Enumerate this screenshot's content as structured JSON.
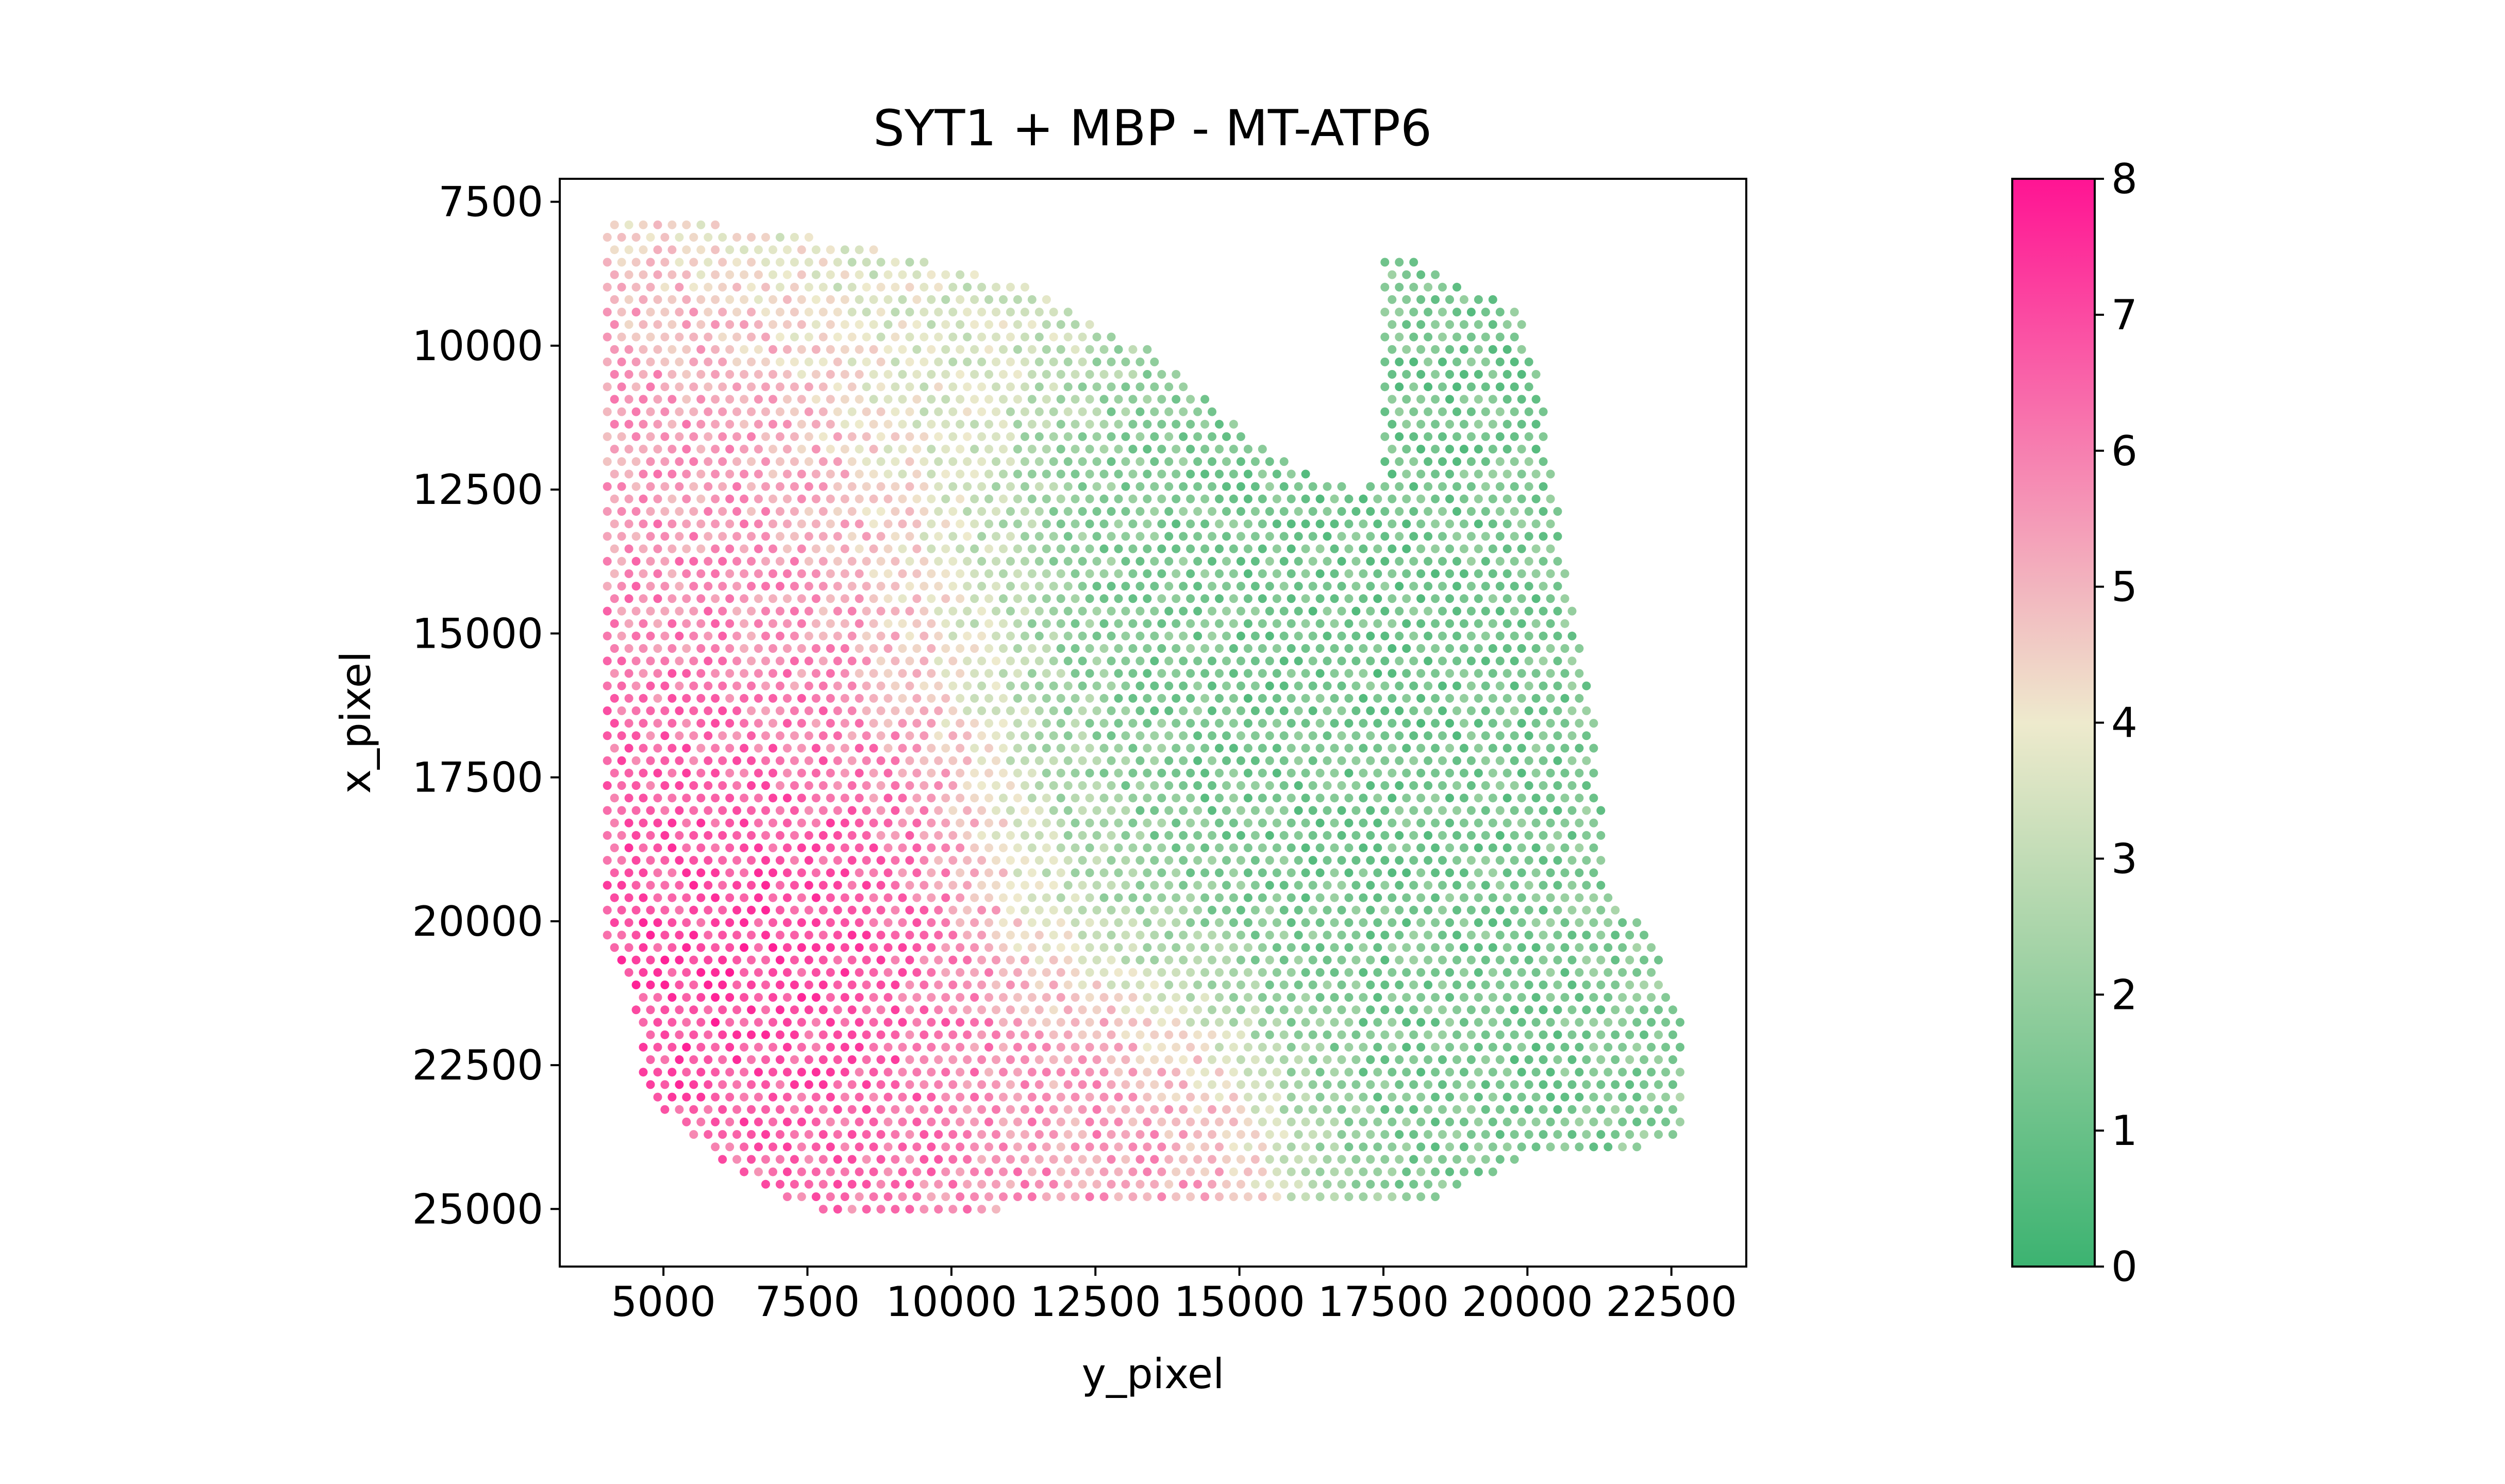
{
  "chart_data": {
    "type": "scatter",
    "title": "SYT1 + MBP - MT-ATP6",
    "xlabel": "y_pixel",
    "ylabel": "x_pixel",
    "xlim": [
      3200,
      23800
    ],
    "ylim": [
      26000,
      7100
    ],
    "y_inverted": true,
    "x_ticks": [
      "5000",
      "7500",
      "10000",
      "12500",
      "15000",
      "17500",
      "20000",
      "22500"
    ],
    "x_tick_values": [
      5000,
      7500,
      10000,
      12500,
      15000,
      17500,
      20000,
      22500
    ],
    "y_ticks": [
      "7500",
      "10000",
      "12500",
      "15000",
      "17500",
      "20000",
      "22500",
      "25000"
    ],
    "y_tick_values": [
      7500,
      10000,
      12500,
      15000,
      17500,
      20000,
      22500,
      25000
    ],
    "grid": false,
    "spot_spacing": 250,
    "colorbar": {
      "min": 0,
      "max": 8,
      "ticks": [
        "0",
        "1",
        "2",
        "3",
        "4",
        "5",
        "6",
        "7",
        "8"
      ],
      "tick_values": [
        0,
        1,
        2,
        3,
        4,
        5,
        6,
        7,
        8
      ],
      "colors": [
        "#3cb371",
        "#eeeacd",
        "#ff1493"
      ]
    },
    "tissue_outline": [
      [
        4000,
        7900
      ],
      [
        6000,
        7900
      ],
      [
        8300,
        8200
      ],
      [
        11200,
        8900
      ],
      [
        13500,
        10100
      ],
      [
        15600,
        11900
      ],
      [
        16500,
        12300
      ],
      [
        17000,
        12500
      ],
      [
        17500,
        12300
      ],
      [
        17500,
        8300
      ],
      [
        19900,
        9400
      ],
      [
        20300,
        11100
      ],
      [
        20600,
        13400
      ],
      [
        20900,
        15000
      ],
      [
        21200,
        16600
      ],
      [
        21400,
        19500
      ],
      [
        22100,
        20200
      ],
      [
        22700,
        21600
      ],
      [
        22700,
        23700
      ],
      [
        21700,
        24000
      ],
      [
        20000,
        24100
      ],
      [
        18500,
        24800
      ],
      [
        16000,
        25000
      ],
      [
        14000,
        25000
      ],
      [
        11000,
        25000
      ],
      [
        9000,
        25200
      ],
      [
        7500,
        25000
      ],
      [
        6200,
        24300
      ],
      [
        4600,
        23000
      ],
      [
        4500,
        21300
      ],
      [
        4000,
        20500
      ]
    ],
    "hotspots": [
      {
        "x": 5800,
        "y": 20800,
        "value": 7.8,
        "radius": 3200
      },
      {
        "x": 4300,
        "y": 17500,
        "value": 6.6,
        "radius": 3500
      },
      {
        "x": 4800,
        "y": 12500,
        "value": 5.8,
        "radius": 3000
      },
      {
        "x": 8500,
        "y": 23600,
        "value": 6.6,
        "radius": 2200
      },
      {
        "x": 12500,
        "y": 24300,
        "value": 5.8,
        "radius": 2200
      },
      {
        "x": 17500,
        "y": 16500,
        "value": 0.9,
        "radius": 3800
      },
      {
        "x": 18400,
        "y": 10500,
        "value": 1.0,
        "radius": 2500
      },
      {
        "x": 14600,
        "y": 11800,
        "value": 1.2,
        "radius": 2500
      },
      {
        "x": 19500,
        "y": 22500,
        "value": 1.1,
        "radius": 2600
      },
      {
        "x": 10500,
        "y": 8500,
        "value": 3.6,
        "radius": 2800
      }
    ]
  }
}
